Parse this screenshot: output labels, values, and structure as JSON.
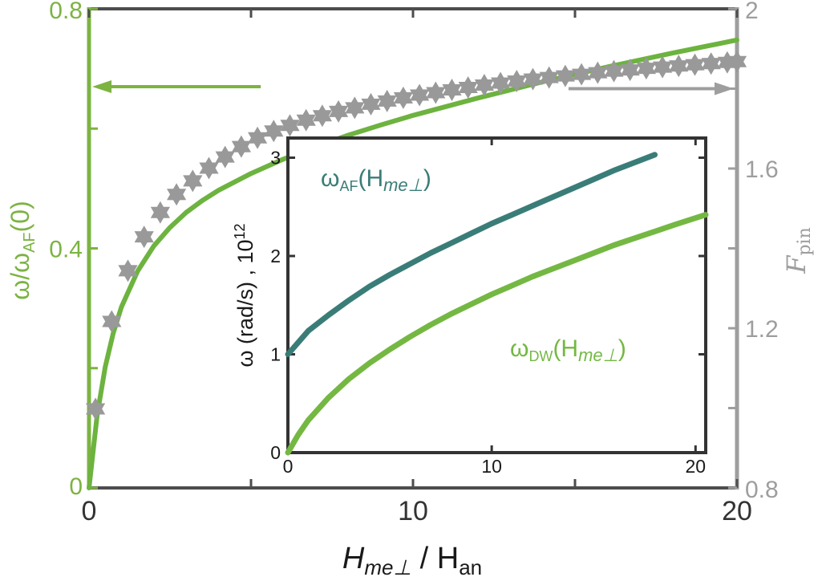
{
  "chart_data": [
    {
      "type": "line",
      "xlabel": {
        "main": "H",
        "sub": "me⊥",
        "rest": " / H",
        "rest_sub": "an"
      },
      "ylabel_left": {
        "main": "ω/ω",
        "sub": "AF",
        "rest": "(0)"
      },
      "ylabel_right": {
        "main": "F",
        "sub": "pin"
      },
      "xlim": [
        0,
        20
      ],
      "ylim_left": [
        0,
        0.8
      ],
      "ylim_right": [
        0.8,
        2.0
      ],
      "x_ticks": [
        0,
        10,
        20
      ],
      "x_tick_labels": [
        "0",
        "10",
        "20"
      ],
      "y_left_ticks": [
        0,
        0.4,
        0.8
      ],
      "y_left_tick_labels": [
        "0",
        "0.4",
        "0.8"
      ],
      "y_right_ticks": [
        0.8,
        1.2,
        1.6,
        2.0
      ],
      "y_right_tick_labels": [
        "0.8",
        "1.2",
        "1.6",
        "2"
      ],
      "colors": {
        "left": "#7cb342",
        "right": "#9e9e9e",
        "line": "#6db33f",
        "markers": "#999999"
      },
      "series": [
        {
          "axis": "left",
          "style": "line",
          "x": [
            0,
            0.25,
            0.5,
            0.75,
            1,
            1.5,
            2,
            2.5,
            3,
            3.5,
            4,
            5,
            6,
            7,
            8,
            9,
            10,
            12,
            14,
            16,
            18,
            20
          ],
          "values": [
            0,
            0.121,
            0.202,
            0.259,
            0.302,
            0.362,
            0.404,
            0.435,
            0.46,
            0.48,
            0.497,
            0.525,
            0.549,
            0.57,
            0.589,
            0.606,
            0.622,
            0.651,
            0.678,
            0.703,
            0.726,
            0.748
          ]
        },
        {
          "axis": "right",
          "style": "markers",
          "marker": "hexagram",
          "x": [
            0.2,
            0.7,
            1.2,
            1.7,
            2.2,
            2.7,
            3.2,
            3.7,
            4.2,
            4.7,
            5.2,
            5.7,
            6.2,
            6.7,
            7.2,
            7.7,
            8.2,
            8.7,
            9.2,
            9.7,
            10.2,
            10.7,
            11.2,
            11.7,
            12.2,
            12.7,
            13.2,
            13.7,
            14.2,
            14.7,
            15.2,
            15.7,
            16.2,
            16.7,
            17.2,
            17.7,
            18.2,
            18.7,
            19.2,
            19.7,
            20
          ],
          "values": [
            0.998,
            1.217,
            1.344,
            1.429,
            1.49,
            1.535,
            1.569,
            1.601,
            1.629,
            1.655,
            1.677,
            1.694,
            1.708,
            1.721,
            1.732,
            1.743,
            1.752,
            1.761,
            1.769,
            1.777,
            1.784,
            1.79,
            1.797,
            1.803,
            1.809,
            1.814,
            1.819,
            1.824,
            1.828,
            1.832,
            1.836,
            1.84,
            1.844,
            1.847,
            1.851,
            1.854,
            1.857,
            1.86,
            1.863,
            1.866,
            1.868
          ]
        }
      ],
      "arrows": [
        {
          "direction": "left",
          "axis": "left",
          "at_y": 0.67,
          "x_from": 5.3,
          "x_to": 0.1
        },
        {
          "direction": "right",
          "axis": "right",
          "at_y": 1.8,
          "x_from": 14.8,
          "x_to": 19.9
        }
      ]
    },
    {
      "type": "line",
      "inset": true,
      "ylabel": {
        "text": "ω (rad/s) , 10",
        "sup": "12"
      },
      "xlim": [
        0,
        20.5
      ],
      "ylim": [
        0,
        3.2
      ],
      "x_ticks": [
        0,
        10,
        20
      ],
      "x_tick_labels": [
        "0",
        "10",
        "20"
      ],
      "y_ticks": [
        0,
        1,
        2,
        3
      ],
      "y_tick_labels": [
        "0",
        "1",
        "2",
        "3"
      ],
      "series": [
        {
          "label": {
            "main": "ω",
            "sub": "AF",
            "open": "(H",
            "it": "me⊥",
            "close": ")"
          },
          "color": "#3a7d78",
          "x": [
            0,
            1,
            2,
            3,
            4,
            5,
            6,
            7,
            8,
            9,
            10,
            11,
            12,
            13,
            14,
            15,
            16,
            17,
            18
          ],
          "values": [
            1.0,
            1.238,
            1.4,
            1.55,
            1.69,
            1.81,
            1.92,
            2.03,
            2.13,
            2.23,
            2.33,
            2.42,
            2.51,
            2.6,
            2.69,
            2.78,
            2.87,
            2.95,
            3.03
          ]
        },
        {
          "label": {
            "main": "ω",
            "sub": "DW",
            "open": "(H",
            "it": "me⊥",
            "close": ")"
          },
          "color": "#74b843",
          "x": [
            0,
            0.5,
            1,
            2,
            3,
            4,
            5,
            6,
            7,
            8,
            9,
            10,
            11,
            12,
            13,
            14,
            15,
            16,
            17,
            18,
            19,
            20.5
          ],
          "values": [
            0,
            0.18,
            0.33,
            0.56,
            0.75,
            0.91,
            1.05,
            1.18,
            1.3,
            1.41,
            1.51,
            1.61,
            1.7,
            1.79,
            1.87,
            1.95,
            2.03,
            2.11,
            2.18,
            2.25,
            2.32,
            2.42
          ]
        }
      ]
    }
  ]
}
